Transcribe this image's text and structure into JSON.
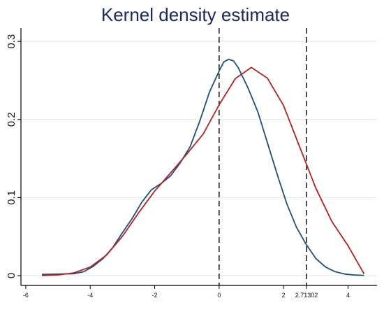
{
  "chart_data": {
    "type": "line",
    "title": "Kernel density estimate",
    "xlabel": "",
    "ylabel": "",
    "xlim": [
      -6.15,
      4.9
    ],
    "ylim": [
      0,
      0.31
    ],
    "grid": true,
    "xticks": [
      {
        "value": -6,
        "label": "-6"
      },
      {
        "value": -4,
        "label": "-4"
      },
      {
        "value": -2,
        "label": "-2"
      },
      {
        "value": 0,
        "label": "0"
      },
      {
        "value": 2,
        "label": "2"
      },
      {
        "value": 2.71302,
        "label": "2.71302"
      },
      {
        "value": 4,
        "label": "4"
      }
    ],
    "yticks": [
      {
        "value": 0,
        "label": "0"
      },
      {
        "value": 0.1,
        "label": "0.1"
      },
      {
        "value": 0.2,
        "label": "0.2"
      },
      {
        "value": 0.3,
        "label": "0.3"
      }
    ],
    "vlines": [
      0,
      2.71302
    ],
    "series": [
      {
        "color": "#1f4e79",
        "x": [
          -5.5,
          -5.0,
          -4.5,
          -4.2,
          -3.9,
          -3.6,
          -3.3,
          -3.0,
          -2.7,
          -2.4,
          -2.1,
          -1.8,
          -1.5,
          -1.2,
          -0.9,
          -0.6,
          -0.3,
          0.0,
          0.15,
          0.3,
          0.45,
          0.6,
          0.9,
          1.2,
          1.5,
          1.8,
          2.1,
          2.4,
          2.7,
          3.0,
          3.3,
          3.6,
          3.9,
          4.2,
          4.5
        ],
        "values": [
          0.0015,
          0.002,
          0.0025,
          0.005,
          0.012,
          0.022,
          0.036,
          0.055,
          0.073,
          0.094,
          0.11,
          0.118,
          0.128,
          0.145,
          0.165,
          0.198,
          0.235,
          0.262,
          0.274,
          0.277,
          0.275,
          0.266,
          0.24,
          0.21,
          0.17,
          0.13,
          0.092,
          0.062,
          0.04,
          0.022,
          0.011,
          0.005,
          0.002,
          0.0008,
          0.0004
        ]
      },
      {
        "color": "#b22222",
        "x": [
          -5.5,
          -5.0,
          -4.5,
          -4.0,
          -3.5,
          -3.0,
          -2.5,
          -2.0,
          -1.5,
          -1.0,
          -0.5,
          0.0,
          0.5,
          1.0,
          1.5,
          2.0,
          2.5,
          3.0,
          3.5,
          4.0,
          4.5
        ],
        "values": [
          0.0002,
          0.0009,
          0.0036,
          0.0109,
          0.0261,
          0.0504,
          0.0805,
          0.1082,
          0.1318,
          0.1558,
          0.1811,
          0.2186,
          0.2522,
          0.2666,
          0.2528,
          0.2176,
          0.1649,
          0.1122,
          0.0692,
          0.0383,
          0.0022
        ]
      }
    ]
  }
}
